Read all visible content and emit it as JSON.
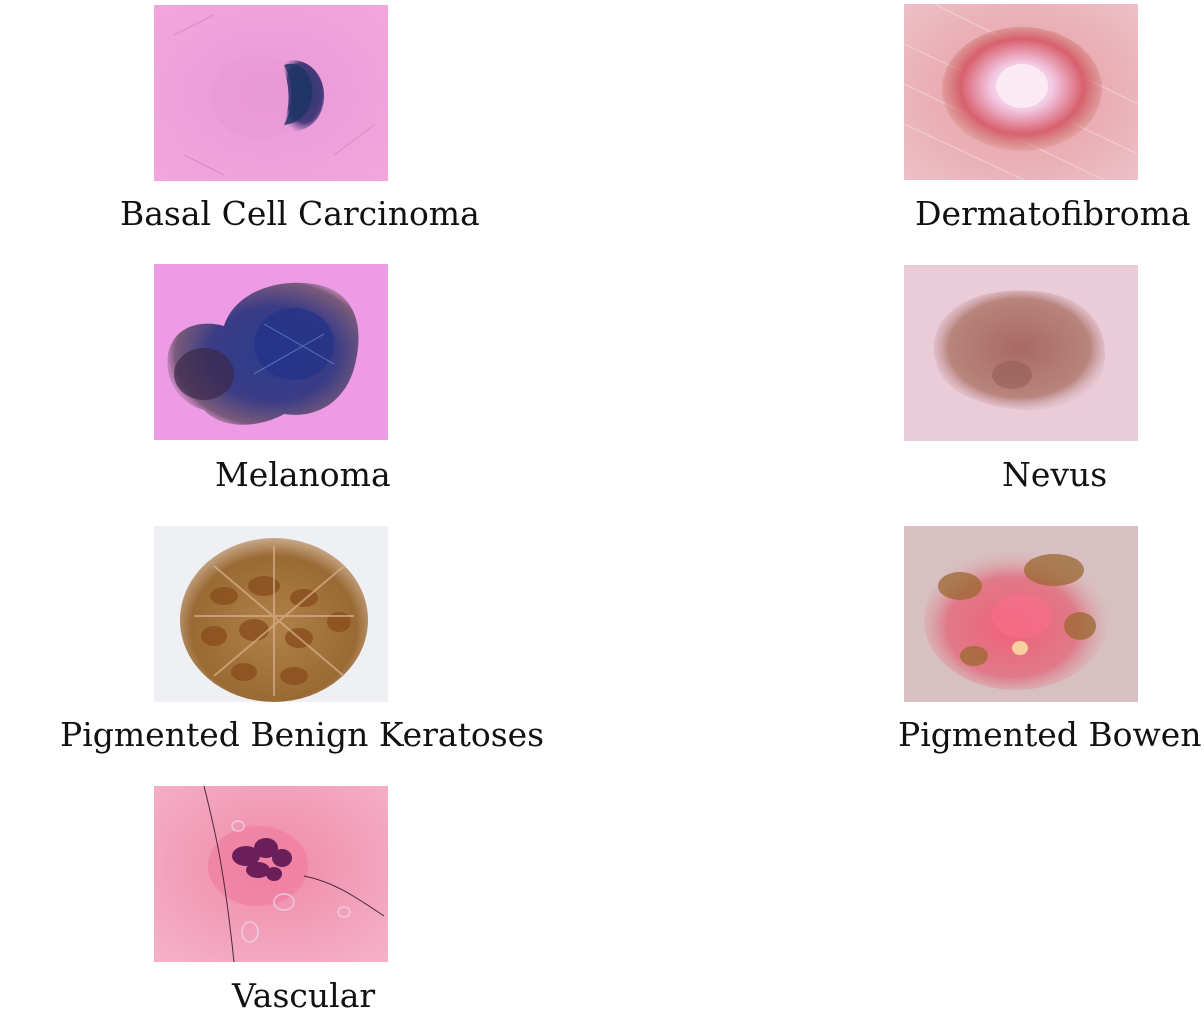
{
  "figure": {
    "panels": [
      {
        "id": "bcc",
        "label": "Basal Cell Carcinoma"
      },
      {
        "id": "df",
        "label": "Dermatofibroma"
      },
      {
        "id": "mel",
        "label": "Melanoma"
      },
      {
        "id": "nv",
        "label": "Nevus"
      },
      {
        "id": "bkl",
        "label": "Pigmented Benign Keratoses"
      },
      {
        "id": "akiec",
        "label": "Pigmented Bowen"
      },
      {
        "id": "vasc",
        "label": "Vascular"
      }
    ]
  }
}
